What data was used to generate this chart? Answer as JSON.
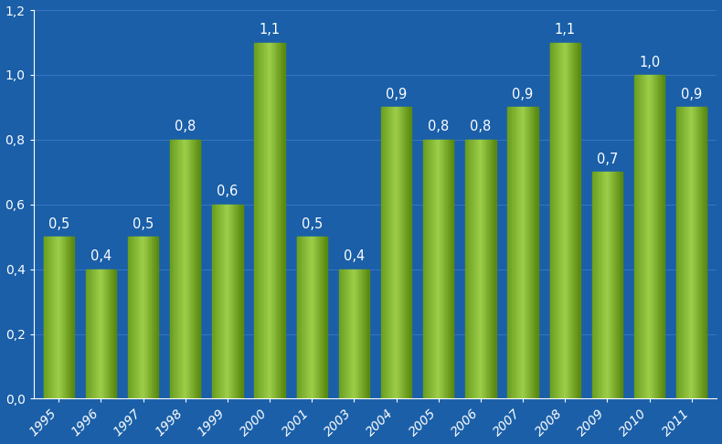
{
  "categories": [
    "1995",
    "1996",
    "1997",
    "1998",
    "1999",
    "2000",
    "2001",
    "2003",
    "2004",
    "2005",
    "2006",
    "2007",
    "2008",
    "2009",
    "2010",
    "2011"
  ],
  "values": [
    0.5,
    0.4,
    0.5,
    0.8,
    0.6,
    1.1,
    0.5,
    0.4,
    0.9,
    0.8,
    0.8,
    0.9,
    1.1,
    0.7,
    1.0,
    0.9
  ],
  "bar_color_center": "#9ecf4a",
  "bar_color_left": "#6a9e20",
  "bar_color_right": "#5a8a10",
  "background_color": "#1a5fa8",
  "text_color": "#ffffff",
  "grid_color": "#3a75c4",
  "ylim": [
    0.0,
    1.2
  ],
  "yticks": [
    0.0,
    0.2,
    0.4,
    0.6,
    0.8,
    1.0,
    1.2
  ],
  "bar_width": 0.72,
  "label_fontsize": 10.5,
  "tick_fontsize": 10,
  "figwidth": 7.9,
  "figheight": 4.86,
  "dpi": 100
}
